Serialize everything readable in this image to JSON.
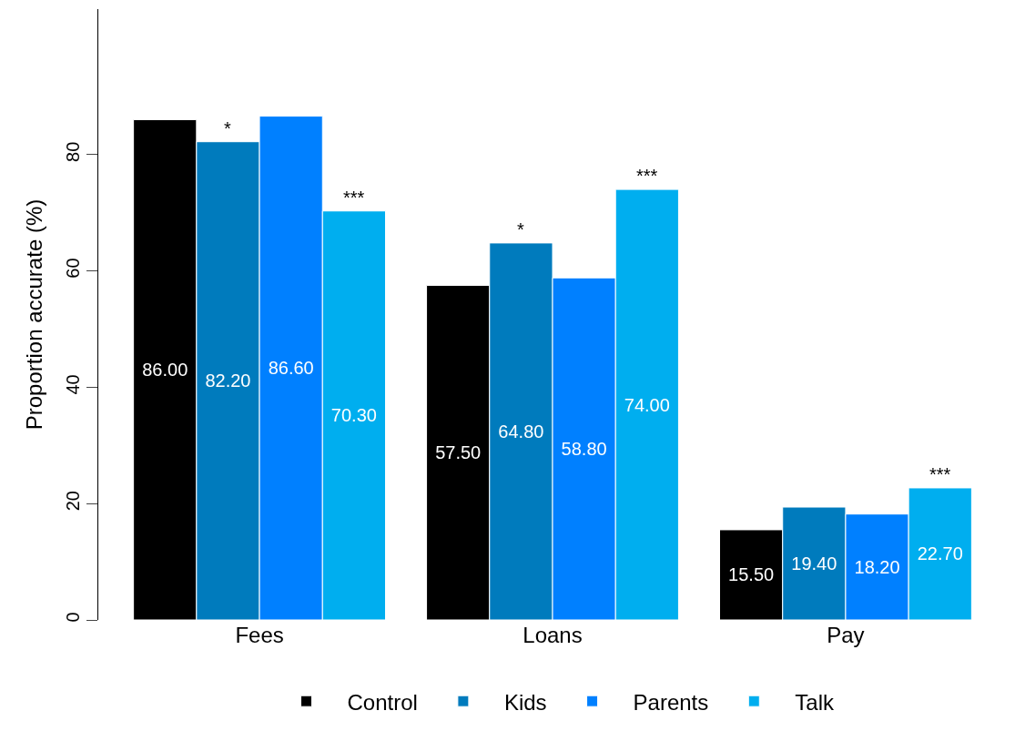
{
  "chart_data": {
    "type": "bar",
    "ylabel": "Proportion accurate (%)",
    "categories": [
      "Fees",
      "Loans",
      "Pay"
    ],
    "series": [
      {
        "name": "Control",
        "color": "#000000",
        "values": [
          86.0,
          57.5,
          15.5
        ],
        "value_labels": [
          "86.00",
          "57.50",
          "15.50"
        ]
      },
      {
        "name": "Kids",
        "color": "#007bbd",
        "values": [
          82.2,
          64.8,
          19.4
        ],
        "value_labels": [
          "82.20",
          "64.80",
          "19.40"
        ]
      },
      {
        "name": "Parents",
        "color": "#0080ff",
        "values": [
          86.6,
          58.8,
          18.2
        ],
        "value_labels": [
          "86.60",
          "58.80",
          "18.20"
        ]
      },
      {
        "name": "Talk",
        "color": "#00aeef",
        "values": [
          70.3,
          74.0,
          22.7
        ],
        "value_labels": [
          "70.30",
          "74.00",
          "22.70"
        ]
      }
    ],
    "ylim": [
      0,
      105
    ],
    "yticks": [
      0,
      20,
      40,
      60,
      80
    ],
    "annotations": [
      {
        "text": "*",
        "y": 82.2
      },
      {
        "text": "***",
        "y": 70.3
      },
      {
        "text": "*",
        "y": 64.8
      },
      {
        "text": "***",
        "y": 74.0
      },
      {
        "text": "***",
        "y": 22.7
      }
    ],
    "legend": "bottom"
  }
}
